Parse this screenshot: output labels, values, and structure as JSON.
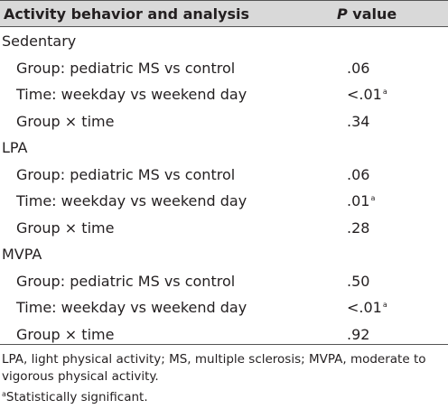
{
  "table": {
    "header": {
      "col1": "Activity behavior and analysis",
      "col2_italic": "P",
      "col2_rest": " value"
    },
    "sections": [
      {
        "name": "Sedentary",
        "rows": [
          {
            "label": "Group: pediatric MS vs control",
            "value": ".06",
            "sup": ""
          },
          {
            "label": "Time: weekday vs weekend day",
            "value": "<.01",
            "sup": "a"
          },
          {
            "label": "Group × time",
            "value": ".34",
            "sup": ""
          }
        ]
      },
      {
        "name": "LPA",
        "rows": [
          {
            "label": "Group: pediatric MS vs control",
            "value": ".06",
            "sup": ""
          },
          {
            "label": "Time: weekday vs weekend day",
            "value": ".01",
            "sup": "a"
          },
          {
            "label": "Group × time",
            "value": ".28",
            "sup": ""
          }
        ]
      },
      {
        "name": "MVPA",
        "rows": [
          {
            "label": "Group: pediatric MS vs control",
            "value": ".50",
            "sup": ""
          },
          {
            "label": "Time: weekday vs weekend day",
            "value": "<.01",
            "sup": "a"
          },
          {
            "label": "Group × time",
            "value": ".92",
            "sup": ""
          }
        ]
      }
    ]
  },
  "footnotes": {
    "abbreviations": "LPA, light physical activity; MS, multiple sclerosis; MVPA, moderate to vigorous physical activity.",
    "sig_marker": "a",
    "sig_text": "Statistically significant."
  }
}
